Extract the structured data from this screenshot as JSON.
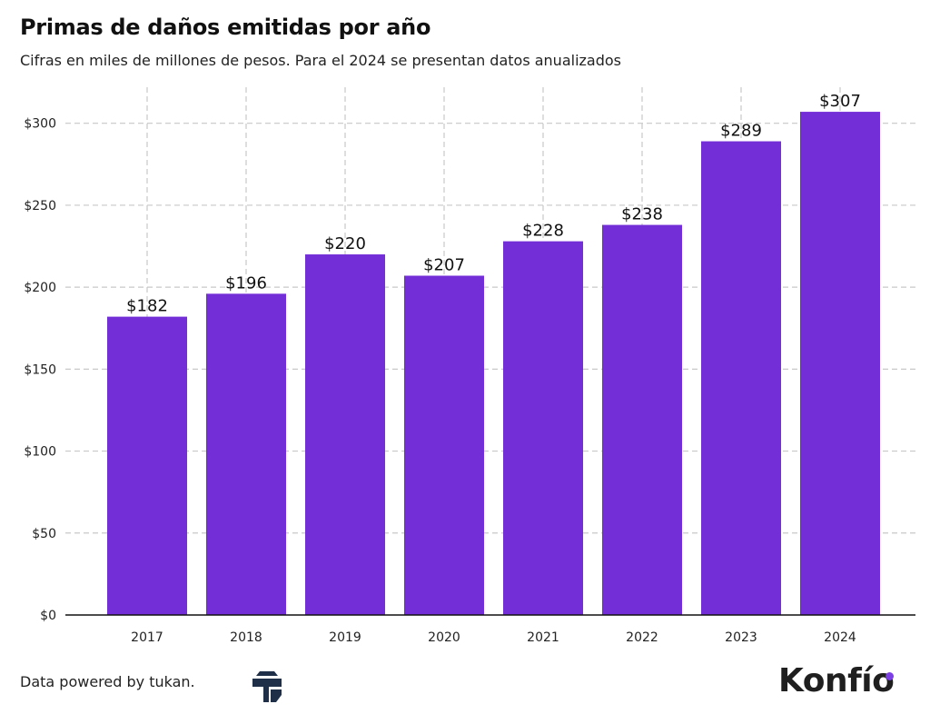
{
  "title": "Primas de daños emitidas por año",
  "subtitle": "Cifras en miles de millones de pesos. Para el 2024 se presentan datos anualizados",
  "footer": {
    "text": "Data powered by tukan.",
    "brand": "Konfío"
  },
  "colors": {
    "bar": "#732ed8",
    "grid": "#c8c8c8",
    "axis": "#111111",
    "brand_dot": "#7b3fe4",
    "tukan_logo": "#1f2f47"
  },
  "icons": {
    "tukan": "tukan-logo-icon"
  },
  "chart_data": {
    "type": "bar",
    "categories": [
      "2017",
      "2018",
      "2019",
      "2020",
      "2021",
      "2022",
      "2023",
      "2024"
    ],
    "values": [
      182,
      196,
      220,
      207,
      228,
      238,
      289,
      307
    ],
    "data_labels": [
      "$182",
      "$196",
      "$220",
      "$207",
      "$228",
      "$238",
      "$289",
      "$307"
    ],
    "yticks": [
      0,
      50,
      100,
      150,
      200,
      250,
      300
    ],
    "ytick_labels": [
      "$0",
      "$50",
      "$100",
      "$150",
      "$200",
      "$250",
      "$300"
    ],
    "ylim": [
      0,
      322
    ],
    "grid": true,
    "legend": "none"
  }
}
